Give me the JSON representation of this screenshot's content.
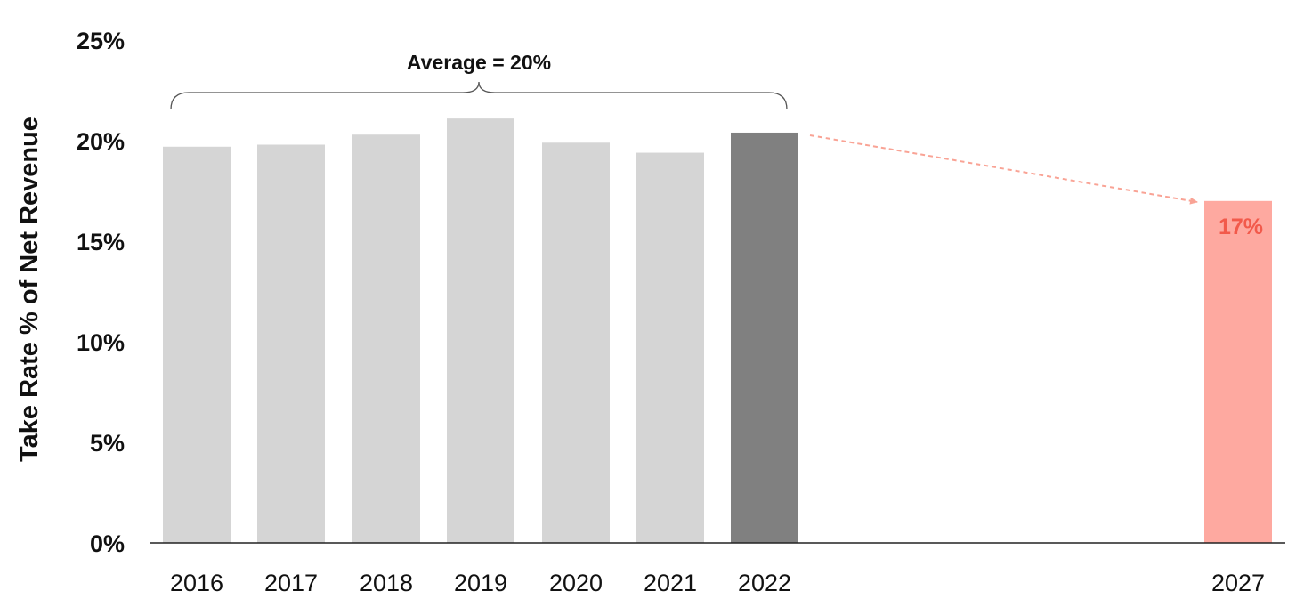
{
  "chart_data": {
    "type": "bar",
    "title": "",
    "xlabel": "",
    "ylabel": "Take Rate % of Net Revenue",
    "ylim": [
      0,
      25
    ],
    "yticks": [
      "0%",
      "5%",
      "10%",
      "15%",
      "20%",
      "25%"
    ],
    "categories": [
      "2016",
      "2017",
      "2018",
      "2019",
      "2020",
      "2021",
      "2022",
      "2027"
    ],
    "values": [
      19.7,
      19.8,
      20.3,
      21.1,
      19.9,
      19.4,
      20.4,
      17.0
    ],
    "bar_colors": [
      "#d5d5d5",
      "#d5d5d5",
      "#d5d5d5",
      "#d5d5d5",
      "#d5d5d5",
      "#d5d5d5",
      "#808080",
      "#fea9a0"
    ],
    "grid": false,
    "annotations": {
      "average_label": "Average = 20%",
      "forecast_label": "17%",
      "forecast_label_color": "#f25a4b",
      "arrow_color": "#f9a395"
    }
  }
}
